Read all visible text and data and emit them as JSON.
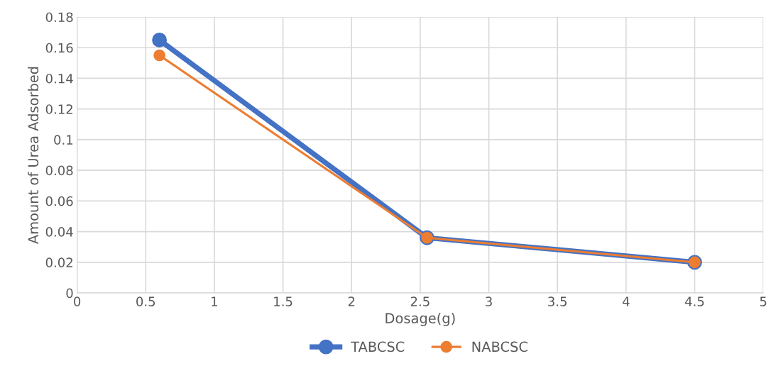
{
  "chart_data": {
    "type": "line",
    "xlabel": "Dosage(g)",
    "ylabel": "Amount of Urea Adsorbed",
    "series": [
      {
        "name": "TABCSC",
        "color": "#4472c4",
        "x": [
          0.6,
          2.55,
          4.5
        ],
        "values": [
          0.165,
          0.036,
          0.02
        ]
      },
      {
        "name": "NABCSC",
        "color": "#ed7d31",
        "x": [
          0.6,
          2.55,
          4.5
        ],
        "values": [
          0.155,
          0.036,
          0.02
        ]
      }
    ],
    "xlim": [
      0,
      5
    ],
    "xticks": [
      0,
      0.5,
      1,
      1.5,
      2,
      2.5,
      3,
      3.5,
      4,
      4.5,
      5
    ],
    "ylim": [
      0,
      0.18
    ],
    "yticks": [
      0,
      0.02,
      0.04,
      0.06,
      0.08,
      0.1,
      0.12,
      0.14,
      0.16,
      0.18
    ],
    "grid": true,
    "legend": "bottom",
    "marker": "circle",
    "line_style": "solid"
  }
}
